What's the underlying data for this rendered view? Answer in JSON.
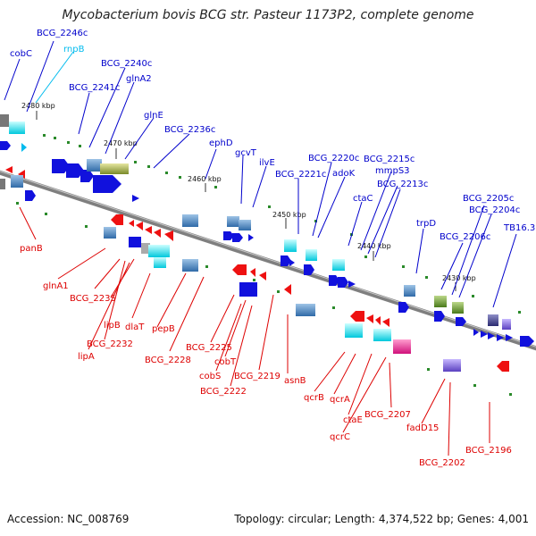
{
  "title": "Mycobacterium bovis BCG str. Pasteur 1173P2, complete genome",
  "footer": {
    "accession": "Accession: NC_008769",
    "summary": "Topology: circular; Length: 4,374,522 bp; Genes: 4,001"
  },
  "colors": {
    "backbone": "#808080",
    "forward_label": "#0000cc",
    "reverse_label": "#dd0000",
    "rna_label": "#00bbee",
    "forward_feature": "#1111dd",
    "reverse_feature": "#ee1111"
  },
  "ticks": [
    "2480 kbp",
    "2470 kbp",
    "2460 kbp",
    "2450 kbp",
    "2440 kbp",
    "2430 kbp"
  ],
  "forward_labels": [
    "cobC",
    "BCG_2246c",
    "rnpB",
    "BCG_2240c",
    "BCG_2241c",
    "glnA2",
    "glnE",
    "BCG_2236c",
    "ephD",
    "gcvT",
    "ilvE",
    "BCG_2221c",
    "BCG_2220c",
    "adoK",
    "mmpS3",
    "BCG_2215c",
    "BCG_2213c",
    "ctaC",
    "trpD",
    "BCG_2206c",
    "BCG_2205c",
    "BCG_2204c",
    "TB16.3"
  ],
  "reverse_labels": [
    "panB",
    "glnA1",
    "BCG_2235",
    "lipB",
    "dlaT",
    "BCG_2232",
    "lipA",
    "pepB",
    "BCG_2228",
    "BCG_2225",
    "cobT",
    "cobS",
    "BCG_2222",
    "BCG_2219",
    "asnB",
    "qcrB",
    "qcrA",
    "ctaE",
    "qcrC",
    "BCG_2207",
    "fadD15",
    "BCG_2202",
    "BCG_2196"
  ]
}
